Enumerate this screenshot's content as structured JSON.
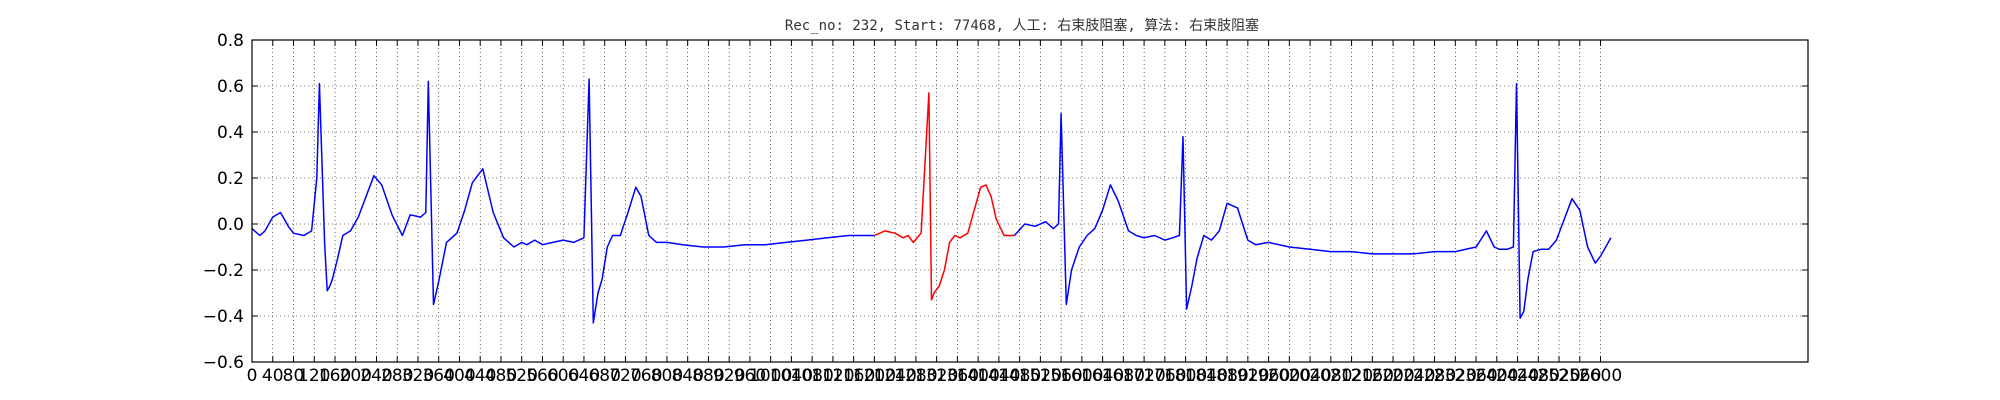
{
  "chart_data": {
    "type": "line",
    "title": "Rec_no: 232, Start: 77468, 人工: 右束肢阻塞, 算法: 右束肢阻塞",
    "xlabel": "",
    "ylabel": "",
    "xlim": [
      0,
      3000
    ],
    "ylim": [
      -0.6,
      0.8
    ],
    "grid": true,
    "grid_style": "dotted",
    "y_ticks": [
      "0.8",
      "0.6",
      "0.4",
      "0.2",
      "0.0",
      "−0.2",
      "−0.4",
      "−0.6"
    ],
    "x_ticks": [
      "0",
      "40",
      "80",
      "120",
      "160",
      "200",
      "240",
      "280",
      "320",
      "360",
      "400",
      "440",
      "480",
      "520",
      "560",
      "600",
      "640",
      "680",
      "720",
      "760",
      "800",
      "840",
      "880",
      "920",
      "960",
      "1000",
      "1040",
      "1080",
      "1120",
      "1160",
      "1200",
      "1240",
      "1280",
      "1320",
      "1360",
      "1400",
      "1440",
      "1480",
      "1520",
      "1560",
      "1600",
      "1640",
      "1680",
      "1720",
      "1760",
      "1800",
      "1840",
      "1880",
      "1920",
      "1960",
      "2000",
      "2040",
      "2080",
      "2120",
      "2160",
      "2200",
      "2240",
      "2280",
      "2320",
      "2360",
      "2400",
      "2440",
      "2480",
      "2520",
      "2560",
      "2600"
    ],
    "series": [
      {
        "color": "#0000ff",
        "x": [
          0,
          15,
          25,
          40,
          55,
          70,
          80,
          100,
          115,
          125,
          130,
          140,
          145,
          150,
          155,
          165,
          175,
          190,
          205,
          220,
          235,
          250,
          270,
          290,
          305,
          325,
          335,
          340,
          350,
          360,
          375,
          395,
          410,
          425,
          445,
          465,
          485,
          505,
          520,
          530,
          545,
          560,
          580,
          600,
          620,
          640,
          650,
          658,
          667,
          675,
          685,
          695,
          710,
          725,
          740,
          750,
          765,
          780,
          800,
          830,
          870,
          910,
          950,
          990,
          1030,
          1070,
          1110,
          1150,
          1190,
          1200
        ],
        "y": [
          -0.02,
          -0.05,
          -0.03,
          0.03,
          0.05,
          -0.01,
          -0.04,
          -0.05,
          -0.03,
          0.2,
          0.61,
          -0.08,
          -0.29,
          -0.27,
          -0.24,
          -0.15,
          -0.05,
          -0.03,
          0.03,
          0.12,
          0.21,
          0.17,
          0.04,
          -0.05,
          0.04,
          0.03,
          0.05,
          0.62,
          -0.35,
          -0.25,
          -0.08,
          -0.04,
          0.06,
          0.18,
          0.24,
          0.05,
          -0.06,
          -0.1,
          -0.08,
          -0.09,
          -0.07,
          -0.09,
          -0.08,
          -0.07,
          -0.08,
          -0.06,
          0.63,
          -0.43,
          -0.3,
          -0.24,
          -0.1,
          -0.05,
          -0.05,
          0.05,
          0.16,
          0.12,
          -0.05,
          -0.08,
          -0.08,
          -0.09,
          -0.1,
          -0.1,
          -0.09,
          -0.09,
          -0.08,
          -0.07,
          -0.06,
          -0.05,
          -0.05,
          -0.05
        ]
      },
      {
        "color": "#ff0000",
        "x": [
          1200,
          1220,
          1240,
          1255,
          1265,
          1275,
          1290,
          1305,
          1310,
          1315,
          1325,
          1335,
          1345,
          1355,
          1365,
          1380,
          1395,
          1405,
          1415,
          1425,
          1435,
          1450,
          1470
        ],
        "y": [
          -0.05,
          -0.03,
          -0.04,
          -0.06,
          -0.05,
          -0.08,
          -0.04,
          0.57,
          -0.33,
          -0.3,
          -0.27,
          -0.2,
          -0.08,
          -0.05,
          -0.06,
          -0.04,
          0.08,
          0.16,
          0.17,
          0.12,
          0.02,
          -0.05,
          -0.05
        ]
      },
      {
        "color": "#0000ff",
        "x": [
          1470,
          1490,
          1510,
          1530,
          1545,
          1555,
          1560,
          1570,
          1580,
          1595,
          1610,
          1625,
          1640,
          1655,
          1670,
          1690,
          1705,
          1720,
          1740,
          1760,
          1775,
          1788,
          1795,
          1802,
          1812,
          1822,
          1835,
          1850,
          1865,
          1880,
          1900,
          1920,
          1935,
          1960,
          2000,
          2040,
          2080,
          2120,
          2160,
          2200,
          2240,
          2280,
          2320,
          2360,
          2380,
          2395,
          2405,
          2420,
          2432,
          2438,
          2445,
          2452,
          2460,
          2470,
          2485,
          2500,
          2515,
          2530,
          2545,
          2560,
          2575,
          2590,
          2600,
          2610,
          2620
        ],
        "y": [
          -0.05,
          0.0,
          -0.01,
          0.01,
          -0.02,
          0.0,
          0.48,
          -0.35,
          -0.2,
          -0.1,
          -0.05,
          -0.02,
          0.06,
          0.17,
          0.1,
          -0.03,
          -0.05,
          -0.06,
          -0.05,
          -0.07,
          -0.06,
          -0.05,
          0.38,
          -0.37,
          -0.27,
          -0.15,
          -0.05,
          -0.07,
          -0.03,
          0.09,
          0.07,
          -0.07,
          -0.09,
          -0.08,
          -0.1,
          -0.11,
          -0.12,
          -0.12,
          -0.13,
          -0.13,
          -0.13,
          -0.12,
          -0.12,
          -0.1,
          -0.03,
          -0.1,
          -0.11,
          -0.11,
          -0.1,
          0.61,
          -0.41,
          -0.38,
          -0.24,
          -0.12,
          -0.11,
          -0.11,
          -0.07,
          0.02,
          0.11,
          0.06,
          -0.1,
          -0.17,
          -0.14,
          -0.1,
          -0.06
        ]
      }
    ]
  }
}
